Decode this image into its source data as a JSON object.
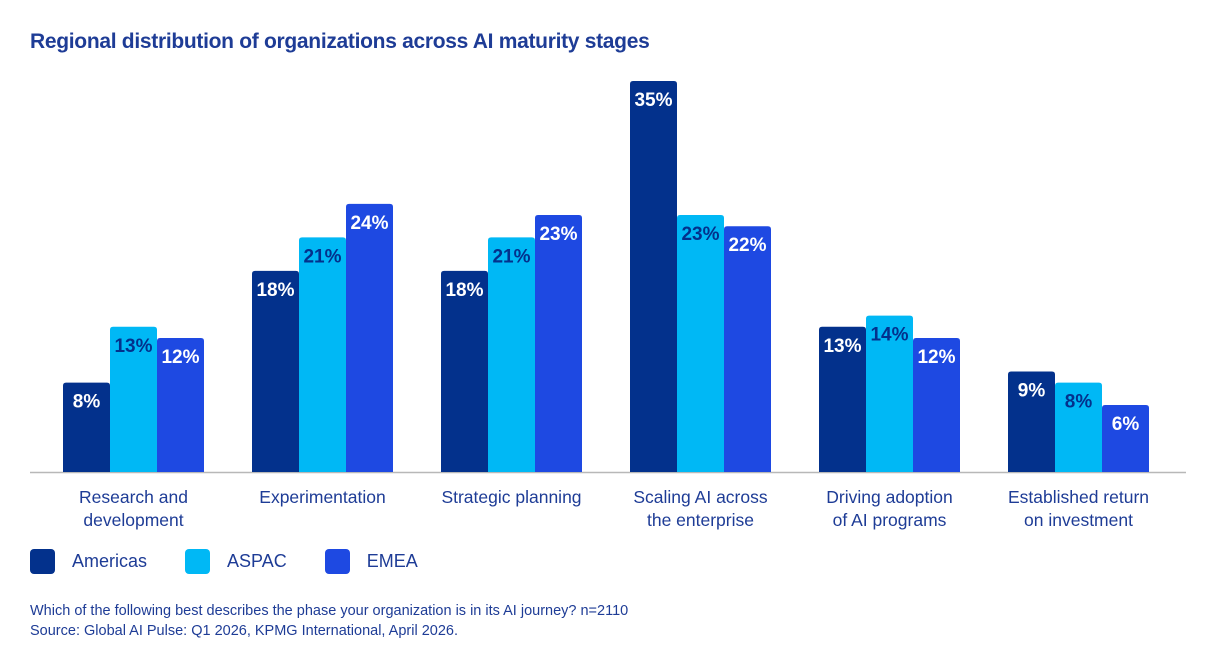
{
  "title": "Regional distribution of organizations across AI maturity stages",
  "legend": [
    {
      "name": "Americas",
      "color": "#03318c"
    },
    {
      "name": "ASPAC",
      "color": "#00b8f5"
    },
    {
      "name": "EMEA",
      "color": "#1e49e2"
    }
  ],
  "footnote": {
    "question": "Which of the following best describes the phase your organization is in its AI journey? n=2110",
    "source": "Source: Global AI Pulse: Q1 2026, KPMG International, April 2026."
  },
  "chart_data": {
    "type": "bar",
    "title": "Regional distribution of organizations across AI maturity stages",
    "xlabel": "",
    "ylabel": "",
    "ylim": [
      0,
      35
    ],
    "grid": false,
    "legend_position": "bottom-left",
    "categories": [
      [
        "Research and",
        "development"
      ],
      [
        "Experimentation"
      ],
      [
        "Strategic planning"
      ],
      [
        "Scaling AI across",
        "the enterprise"
      ],
      [
        "Driving adoption",
        "of AI programs"
      ],
      [
        "Established return",
        "on investment"
      ]
    ],
    "series": [
      {
        "name": "Americas",
        "color": "#03318c",
        "label_color": "#ffffff",
        "values": [
          8,
          18,
          18,
          35,
          13,
          9
        ]
      },
      {
        "name": "ASPAC",
        "color": "#00b8f5",
        "label_color": "#03318c",
        "values": [
          13,
          21,
          21,
          23,
          14,
          8
        ]
      },
      {
        "name": "EMEA",
        "color": "#1e49e2",
        "label_color": "#ffffff",
        "values": [
          12,
          24,
          23,
          22,
          12,
          6
        ]
      }
    ],
    "value_suffix": "%"
  }
}
